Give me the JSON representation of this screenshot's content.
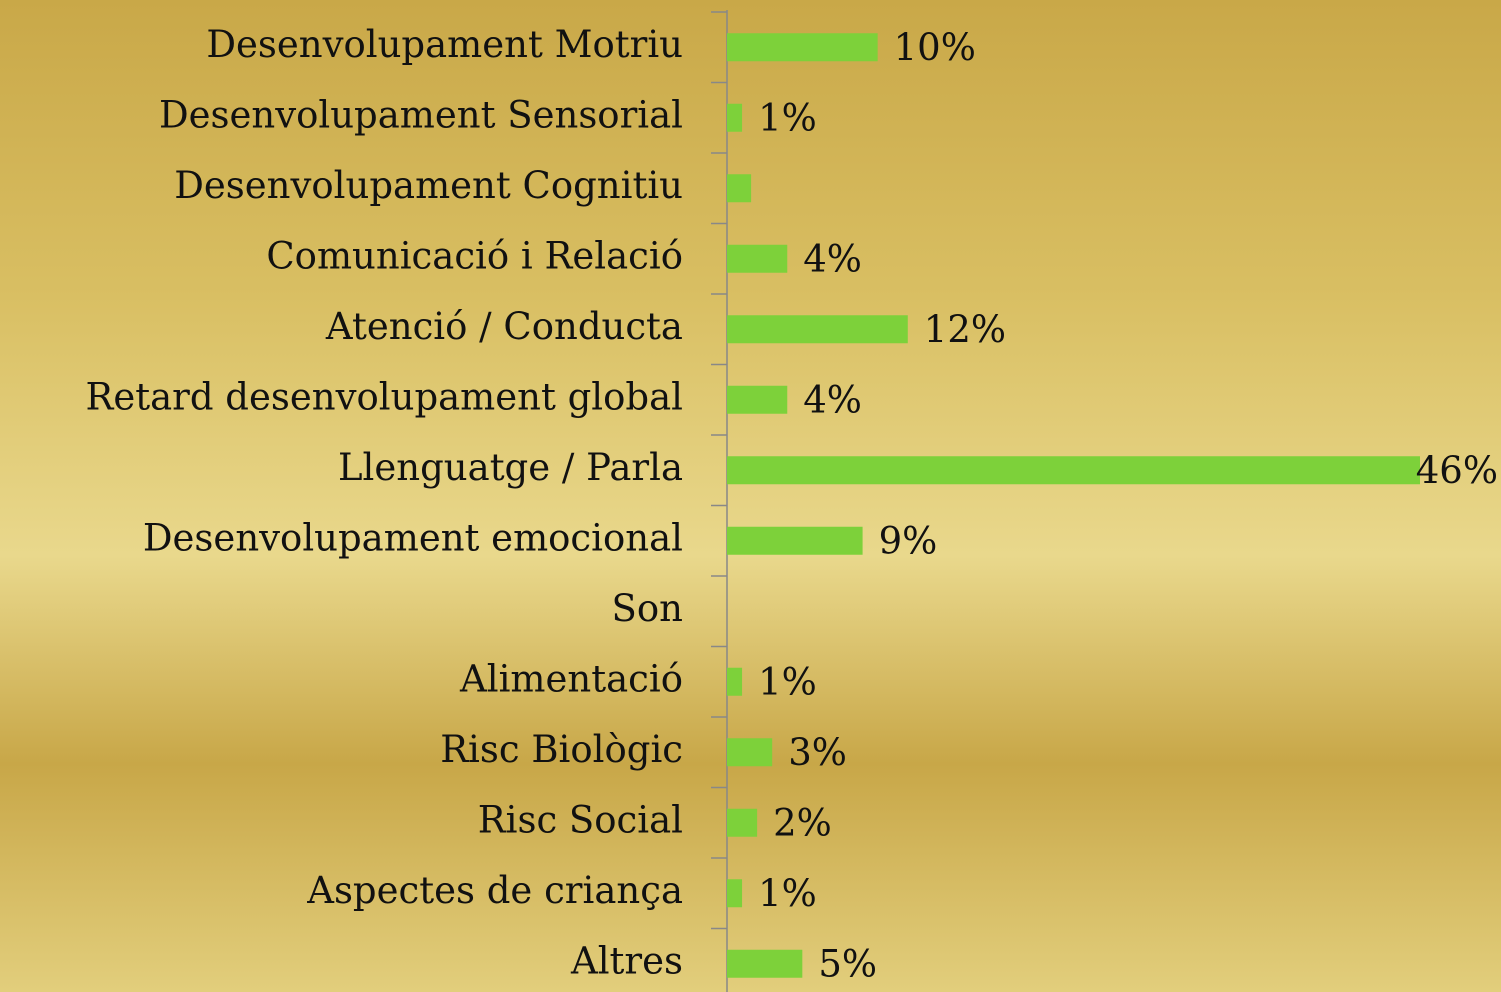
{
  "chart_data": {
    "type": "bar",
    "orientation": "horizontal",
    "categories": [
      "Desenvolupament Motriu",
      "Desenvolupament Sensorial",
      "Desenvolupament Cognitiu",
      "Comunicació i Relació",
      "Atenció / Conducta",
      "Retard desenvolupament global",
      "Llenguatge / Parla",
      "Desenvolupament emocional",
      "Son",
      "Alimentació",
      "Risc Biològic",
      "Risc Social",
      "Aspectes de criança",
      "Altres"
    ],
    "values": [
      10,
      1,
      1.6,
      4,
      12,
      4,
      46,
      9,
      0,
      1,
      3,
      2,
      1,
      5
    ],
    "value_labels": [
      "10%",
      "1%",
      null,
      "4%",
      "12%",
      "4%",
      "46%",
      "9%",
      null,
      "1%",
      "3%",
      "2%",
      "1%",
      "5%"
    ],
    "color": "#7dd13a",
    "xlim": [
      0,
      46
    ]
  }
}
